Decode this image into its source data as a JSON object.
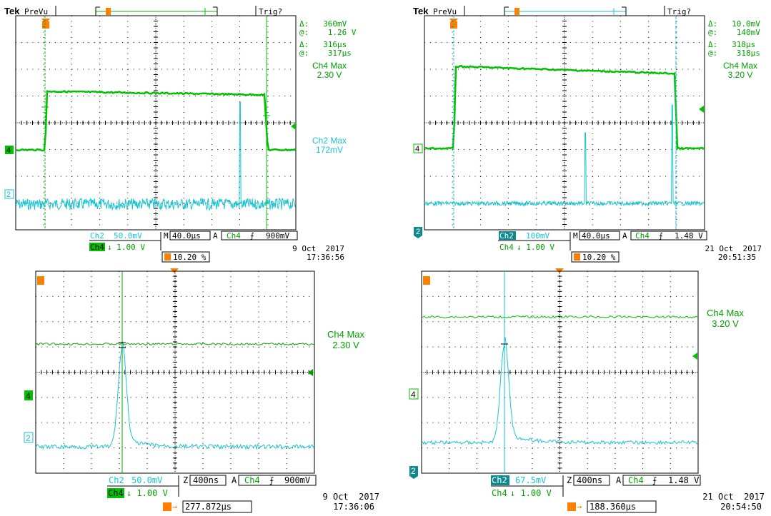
{
  "colors": {
    "ch4": "#00c000",
    "ch2": "#19c3d2",
    "trig": "#ff7f00",
    "grid": "#000000",
    "text": "#000000",
    "bg": "#ffffff"
  },
  "panels": [
    {
      "header": {
        "brand": "Tek",
        "mode": "PreVu",
        "trig_status": "Trig?"
      },
      "readouts": {
        "line1": "Δ:   360mV",
        "line2": "@:    1.26 V",
        "line3": "Δ:   316µs",
        "line4": "@:    317µs",
        "ch4_label": "Ch4 Max",
        "ch4_value": "2.30 V",
        "ch2_label": "Ch2 Max",
        "ch2_value": "172mV"
      },
      "marker_ch4": "4",
      "marker_ch2": "2",
      "settings": {
        "ch2_label": "Ch2",
        "ch2_scale": "50.0mV",
        "time_mode": "M",
        "time_scale": "40.0µs",
        "trig_mode": "A",
        "trig_src": "Ch4",
        "trig_level": "900mV",
        "ch4_label": "Ch4",
        "ch4_scale": "↓ 1.00 V",
        "trig_pos": "10.20 %"
      },
      "date": "9 Oct  2017",
      "time": "17:36:56"
    },
    {
      "header": {
        "brand": "Tek",
        "mode": "PreVu",
        "trig_status": "Trig?"
      },
      "readouts": {
        "line1": "Δ:   10.0mV",
        "line2": "@:    140mV",
        "line3": "Δ:   318µs",
        "line4": "@:    318µs",
        "ch4_label": "Ch4 Max",
        "ch4_value": "3.20 V"
      },
      "marker_ch4": "4",
      "marker_ch2": "2",
      "settings": {
        "ch2_label": "Ch2",
        "ch2_scale": "100mV",
        "time_mode": "M",
        "time_scale": "40.0µs",
        "trig_mode": "A",
        "trig_src": "Ch4",
        "trig_level": "1.48 V",
        "ch4_label": "Ch4",
        "ch4_scale": "↓ 1.00 V",
        "trig_pos": "10.20 %"
      },
      "date": "21 Oct  2017",
      "time": "20:51:35"
    },
    {
      "readouts": {
        "ch4_label": "Ch4 Max",
        "ch4_value": "2.30 V"
      },
      "marker_ch4": "4",
      "marker_ch2": "2",
      "settings": {
        "ch2_label": "Ch2",
        "ch2_scale": "50.0mV",
        "time_mode": "Z",
        "time_scale": "400ns",
        "trig_mode": "A",
        "trig_src": "Ch4",
        "trig_level": "900mV",
        "ch4_label": "Ch4",
        "ch4_scale": "↓ 1.00 V",
        "trig_pos": "277.872µs"
      },
      "date": "9 Oct  2017",
      "time": "17:36:06"
    },
    {
      "readouts": {
        "ch4_label": "Ch4 Max",
        "ch4_value": "3.20 V"
      },
      "marker_ch4": "4",
      "marker_ch2": "2",
      "settings": {
        "ch2_label": "Ch2",
        "ch2_scale": "67.5mV",
        "time_mode": "Z",
        "time_scale": "400ns",
        "trig_mode": "A",
        "trig_src": "Ch4",
        "trig_level": "1.48 V",
        "ch4_label": "Ch4",
        "ch4_scale": "↓ 1.00 V",
        "trig_pos": "188.360µs"
      },
      "date": "21 Oct  2017",
      "time": "20:54:50"
    }
  ]
}
